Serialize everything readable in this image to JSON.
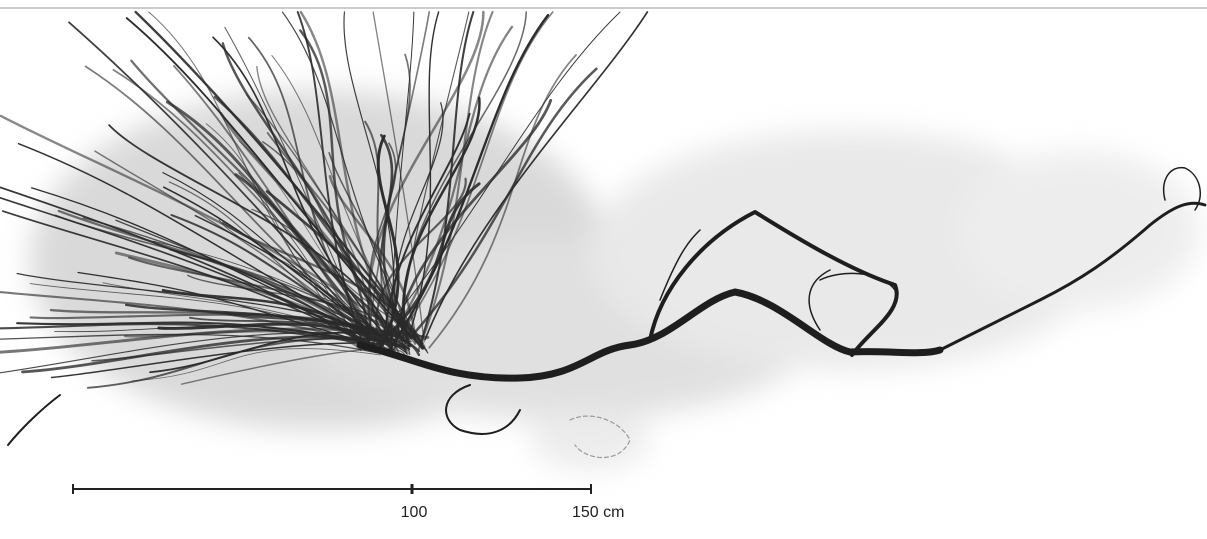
{
  "scale_bar": {
    "labels": [
      "100",
      "150 cm"
    ]
  }
}
